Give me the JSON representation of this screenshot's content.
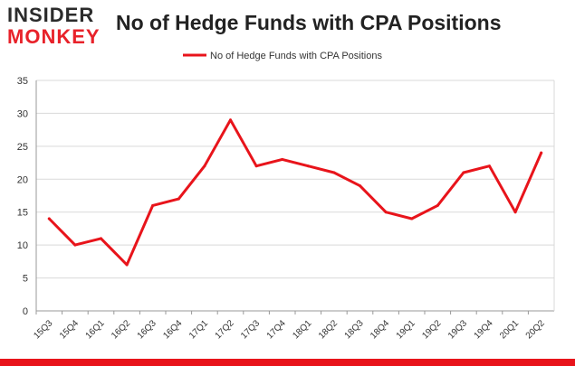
{
  "logo": {
    "line1": "INSIDER",
    "line2": "MONKEY"
  },
  "colors": {
    "series": "#e8141b",
    "grid": "#d9d9d9",
    "axis": "#999999",
    "bottom_bar": "#e8141b"
  },
  "chart_data": {
    "type": "line",
    "title": "No of Hedge Funds with CPA Positions",
    "xlabel": "",
    "ylabel": "",
    "ylim": [
      0,
      35
    ],
    "yticks": [
      0,
      5,
      10,
      15,
      20,
      25,
      30,
      35
    ],
    "grid": true,
    "legend_position": "top-center",
    "categories": [
      "15Q3",
      "15Q4",
      "16Q1",
      "16Q2",
      "16Q3",
      "16Q4",
      "17Q1",
      "17Q2",
      "17Q3",
      "17Q4",
      "18Q1",
      "18Q2",
      "18Q3",
      "18Q4",
      "19Q1",
      "19Q2",
      "19Q3",
      "19Q4",
      "20Q1",
      "20Q2"
    ],
    "series": [
      {
        "name": "No of Hedge Funds with CPA Positions",
        "values": [
          14,
          10,
          11,
          7,
          16,
          17,
          22,
          29,
          22,
          23,
          22,
          21,
          19,
          15,
          14,
          16,
          21,
          22,
          15,
          24
        ]
      }
    ]
  }
}
